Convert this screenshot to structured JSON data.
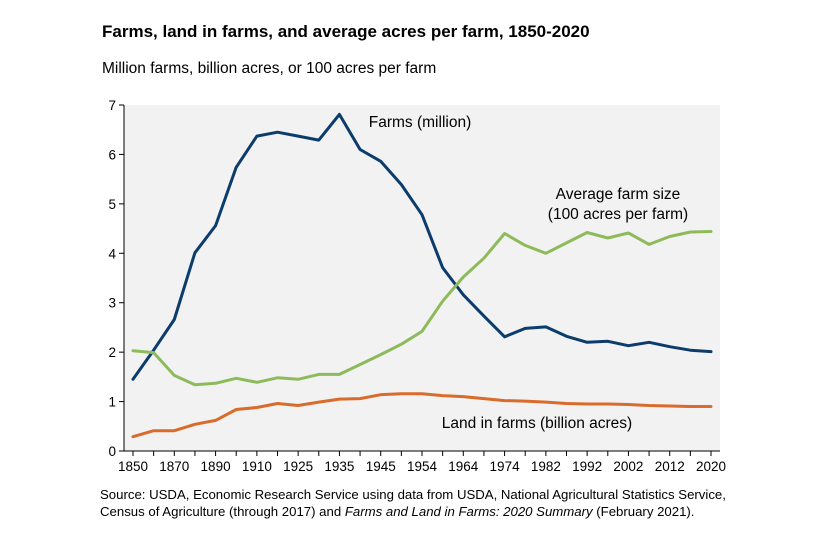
{
  "chart_data": {
    "type": "line",
    "title": "Farms, land in farms, and average acres per farm, 1850-2020",
    "subtitle": "Million farms, billion acres, or 100 acres per farm",
    "ylim": [
      0,
      7
    ],
    "yticks": [
      0,
      1,
      2,
      3,
      4,
      5,
      6,
      7
    ],
    "xtick_labels": [
      "1850",
      "1870",
      "1890",
      "1910",
      "1925",
      "1935",
      "1945",
      "1954",
      "1964",
      "1974",
      "1982",
      "1992",
      "2002",
      "2012",
      "2020"
    ],
    "x": [
      "1850",
      "1860",
      "1870",
      "1880",
      "1890",
      "1900",
      "1910",
      "1920",
      "1925",
      "1930",
      "1935",
      "1940",
      "1945",
      "1950",
      "1954",
      "1959",
      "1964",
      "1969",
      "1974",
      "1978",
      "1982",
      "1987",
      "1992",
      "1997",
      "2002",
      "2007",
      "2012",
      "2017",
      "2020"
    ],
    "grid": false,
    "series": [
      {
        "name": "Farms (million)",
        "color": "#0c3c6c",
        "label_lines": [
          "Farms (million)"
        ],
        "values": [
          1.45,
          2.04,
          2.66,
          4.01,
          4.56,
          5.74,
          6.37,
          6.45,
          6.37,
          6.29,
          6.81,
          6.1,
          5.86,
          5.39,
          4.78,
          3.71,
          3.16,
          2.73,
          2.31,
          2.48,
          2.51,
          2.32,
          2.2,
          2.22,
          2.13,
          2.2,
          2.11,
          2.04,
          2.01
        ]
      },
      {
        "name": "Average farm size (100 acres per farm)",
        "color": "#8dba5b",
        "label_lines": [
          "Average farm size",
          "(100 acres per farm)"
        ],
        "values": [
          2.03,
          1.99,
          1.53,
          1.34,
          1.37,
          1.47,
          1.39,
          1.48,
          1.45,
          1.55,
          1.55,
          1.75,
          1.95,
          2.16,
          2.42,
          3.03,
          3.52,
          3.9,
          4.4,
          4.16,
          4.0,
          4.21,
          4.42,
          4.31,
          4.41,
          4.18,
          4.34,
          4.43,
          4.44
        ]
      },
      {
        "name": "Land in farms (billion acres)",
        "color": "#d96b2b",
        "label_lines": [
          "Land in farms (billion acres)"
        ],
        "values": [
          0.29,
          0.41,
          0.41,
          0.54,
          0.62,
          0.84,
          0.88,
          0.96,
          0.92,
          0.99,
          1.05,
          1.06,
          1.14,
          1.16,
          1.16,
          1.12,
          1.1,
          1.06,
          1.02,
          1.01,
          0.99,
          0.96,
          0.95,
          0.95,
          0.94,
          0.92,
          0.91,
          0.9,
          0.9
        ]
      }
    ]
  },
  "source": {
    "prefix": "Source: USDA, Economic Research Service using data from USDA, National Agricultural Statistics Service, Census of Agriculture (through 2017) and ",
    "italic": "Farms and Land in Farms: 2020 Summary",
    "suffix": " (February 2021)."
  }
}
